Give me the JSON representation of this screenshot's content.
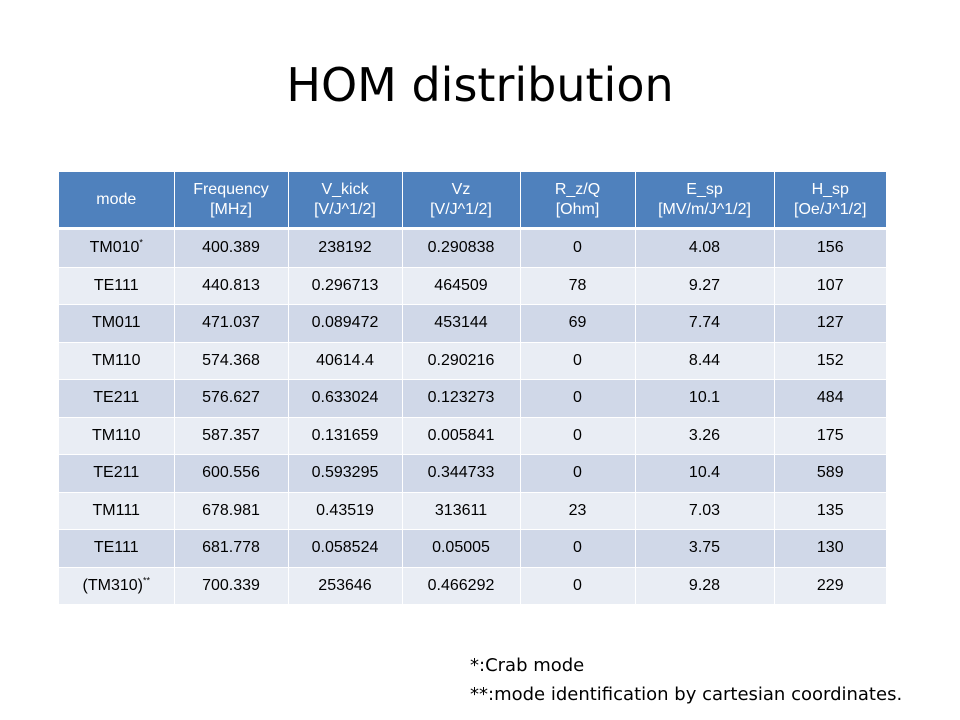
{
  "slide": {
    "title": "HOM distribution"
  },
  "table": {
    "headers": [
      {
        "line1": "mode",
        "line2": ""
      },
      {
        "line1": "Frequency",
        "line2": "[MHz]"
      },
      {
        "line1": "V_kick",
        "line2": "[V/J^1/2]"
      },
      {
        "line1": "Vz",
        "line2": "[V/J^1/2]"
      },
      {
        "line1": "R_z/Q",
        "line2": "[Ohm]"
      },
      {
        "line1": "E_sp",
        "line2": "[MV/m/J^1/2]"
      },
      {
        "line1": "H_sp",
        "line2": "[Oe/J^1/2]"
      }
    ],
    "rows": [
      {
        "mode": "TM010",
        "mark": "*",
        "cells": [
          "400.389",
          "238192",
          "0.290838",
          "0",
          "4.08",
          "156"
        ]
      },
      {
        "mode": "TE111",
        "mark": "",
        "cells": [
          "440.813",
          "0.296713",
          "464509",
          "78",
          "9.27",
          "107"
        ]
      },
      {
        "mode": "TM011",
        "mark": "",
        "cells": [
          "471.037",
          "0.089472",
          "453144",
          "69",
          "7.74",
          "127"
        ]
      },
      {
        "mode": "TM110",
        "mark": "",
        "cells": [
          "574.368",
          "40614.4",
          "0.290216",
          "0",
          "8.44",
          "152"
        ]
      },
      {
        "mode": "TE211",
        "mark": "",
        "cells": [
          "576.627",
          "0.633024",
          "0.123273",
          "0",
          "10.1",
          "484"
        ]
      },
      {
        "mode": "TM110",
        "mark": "",
        "cells": [
          "587.357",
          "0.131659",
          "0.005841",
          "0",
          "3.26",
          "175"
        ]
      },
      {
        "mode": "TE211",
        "mark": "",
        "cells": [
          "600.556",
          "0.593295",
          "0.344733",
          "0",
          "10.4",
          "589"
        ]
      },
      {
        "mode": "TM111",
        "mark": "",
        "cells": [
          "678.981",
          "0.43519",
          "313611",
          "23",
          "7.03",
          "135"
        ]
      },
      {
        "mode": "TE111",
        "mark": "",
        "cells": [
          "681.778",
          "0.058524",
          "0.05005",
          "0",
          "3.75",
          "130"
        ]
      },
      {
        "mode": "(TM310)",
        "mark": "**",
        "cells": [
          "700.339",
          "253646",
          "0.466292",
          "0",
          "9.28",
          "229"
        ]
      }
    ]
  },
  "footnotes": [
    "*:Crab mode",
    "**:mode identification by cartesian coordinates."
  ],
  "colors": {
    "header_bg": "#4f81bd",
    "row_odd_bg": "#d0d8e8",
    "row_even_bg": "#e9edf4"
  }
}
